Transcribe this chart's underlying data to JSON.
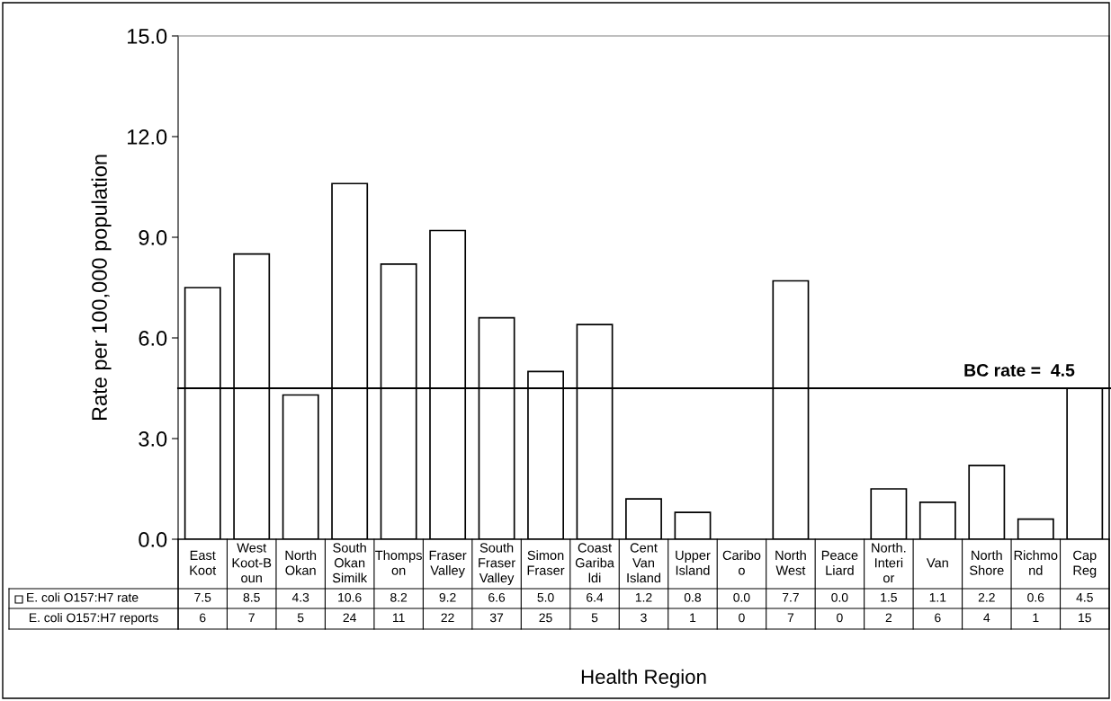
{
  "chart_data": {
    "type": "bar",
    "xlabel": "Health Region",
    "ylabel": "Rate per 100,000 population",
    "categories": [
      "East Koot",
      "West Koot-Boun",
      "North Okan",
      "South Okan Similk",
      "Thompson",
      "Fraser Valley",
      "South Fraser Valley",
      "Simon Fraser",
      "Coast Garibaldi",
      "Cent Van Island",
      "Upper Island",
      "Cariboo",
      "North West",
      "Peace Liard",
      "North. Interior",
      "Van",
      "North Shore",
      "Richmond",
      "Cap Reg"
    ],
    "series": [
      {
        "name": "E. coli O157:H7 rate",
        "color": "#ffffff",
        "values": [
          7.5,
          8.5,
          4.3,
          10.6,
          8.2,
          9.2,
          6.6,
          5.0,
          6.4,
          1.2,
          0.8,
          0.0,
          7.7,
          0.0,
          1.5,
          1.1,
          2.2,
          0.6,
          4.5
        ]
      }
    ],
    "value_labels": [
      "7.5",
      "8.5",
      "4.3",
      "10.6",
      "8.2",
      "9.2",
      "6.6",
      "5.0",
      "6.4",
      "1.2",
      "0.8",
      "0.0",
      "7.7",
      "0.0",
      "1.5",
      "1.1",
      "2.2",
      "0.6",
      "4.5"
    ],
    "ylim": [
      0,
      15
    ],
    "yticks": [
      {
        "value": 0,
        "label": "0.0"
      },
      {
        "value": 3,
        "label": "3.0"
      },
      {
        "value": 6,
        "label": "6.0"
      },
      {
        "value": 9,
        "label": "9.0"
      },
      {
        "value": 12,
        "label": "12.0"
      },
      {
        "value": 15,
        "label": "15.0"
      }
    ],
    "ref_lines": [
      {
        "axis": "y",
        "value": 4.5,
        "label": "BC rate =  4.5",
        "color": "#000000"
      }
    ],
    "annotations": [
      "E. coli O157:H7 reports",
      "6",
      "7",
      "5",
      "24",
      "11",
      "22",
      "37",
      "25",
      "5",
      "3",
      "1",
      "0",
      "7",
      "0",
      "2",
      "6",
      "4",
      "1",
      "15"
    ],
    "grid": false,
    "legend": "bottom"
  }
}
